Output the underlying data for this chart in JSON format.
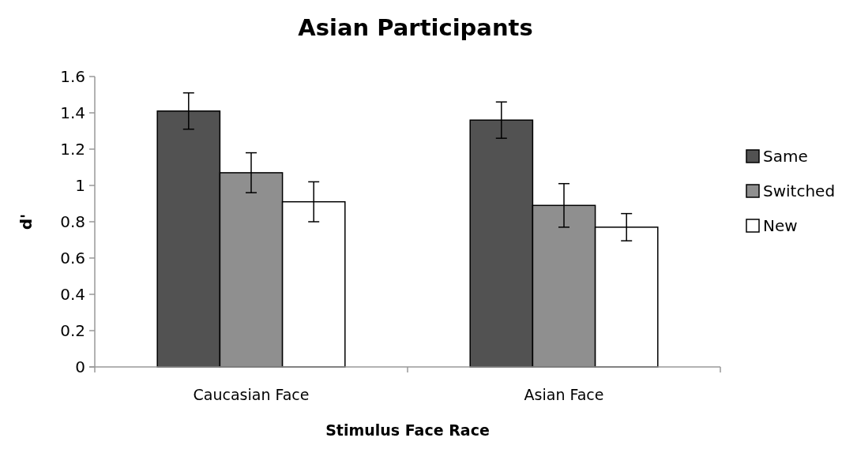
{
  "chart_data": {
    "type": "bar",
    "title": "Asian Participants",
    "xlabel": "Stimulus Face Race",
    "ylabel": "d'",
    "categories": [
      "Caucasian Face",
      "Asian Face"
    ],
    "series": [
      {
        "name": "Same",
        "color": "#525252",
        "values": [
          1.41,
          1.36
        ],
        "errors": [
          0.1,
          0.1
        ]
      },
      {
        "name": "Switched",
        "color": "#8f8f8f",
        "values": [
          1.07,
          0.89
        ],
        "errors": [
          0.11,
          0.12
        ]
      },
      {
        "name": "New",
        "color": "#ffffff",
        "values": [
          0.91,
          0.77
        ],
        "errors": [
          0.11,
          0.075
        ]
      }
    ],
    "ylim": [
      0,
      1.6
    ],
    "yticks": [
      0,
      0.2,
      0.4,
      0.6,
      0.8,
      1,
      1.2,
      1.4,
      1.6
    ],
    "grid": false,
    "legend": "right"
  }
}
